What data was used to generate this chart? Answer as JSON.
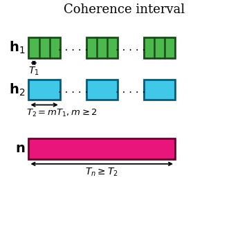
{
  "title": "Coherence interval",
  "title_fontsize": 13,
  "green_color": "#4db84d",
  "green_edge": "#1a4d1a",
  "blue_color": "#40c8e8",
  "blue_edge": "#0a5a7a",
  "magenta_color": "#e8157a",
  "magenta_edge": "#6a0030",
  "background": "#ffffff",
  "h1_label": "$\\mathbf{h}_1$",
  "h2_label": "$\\mathbf{h}_2$",
  "n_label": "$\\mathbf{n}$",
  "t1_label": "$T_1$",
  "t2_label": "$T_2 = mT_1, m \\geq 2$",
  "tn_label": "$T_n \\geq T_2$",
  "xlim": [
    0,
    10
  ],
  "ylim": [
    0,
    10
  ],
  "figw": 3.6,
  "figh": 3.28,
  "dpi": 100
}
